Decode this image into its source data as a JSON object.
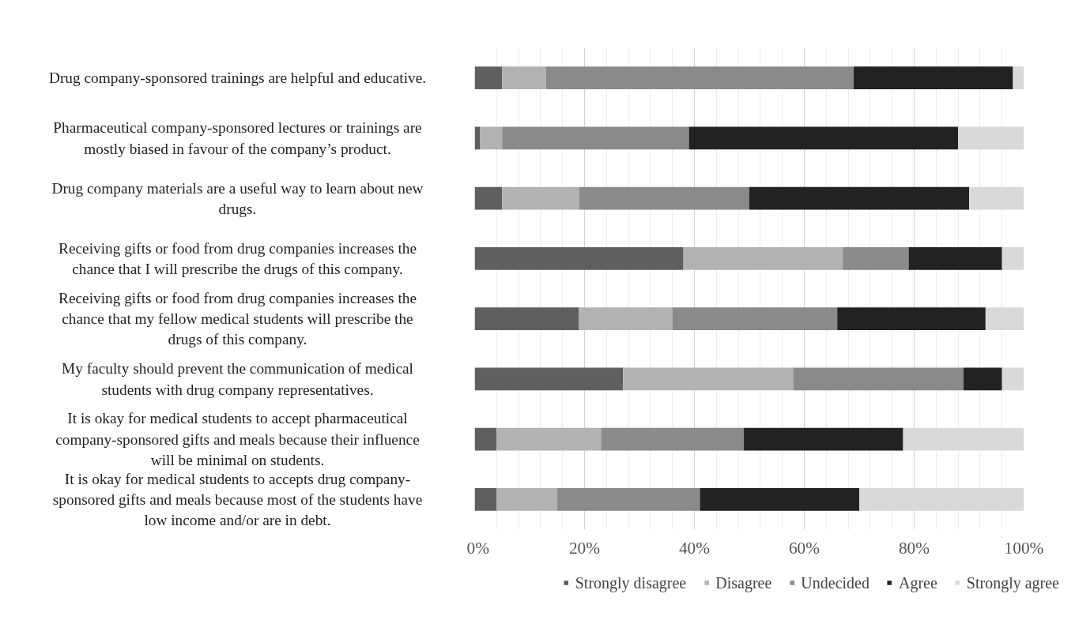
{
  "chart_data": {
    "type": "bar",
    "orientation": "horizontal",
    "stacked": true,
    "grid": "x",
    "legend": "bottom",
    "categories": [
      "Drug company-sponsored trainings are helpful and educative.",
      "Pharmaceutical company-sponsored lectures or trainings are mostly biased in favour of the company’s product.",
      "Drug company materials are a useful way to learn about new drugs.",
      "Receiving gifts or food from drug companies increases the chance that I will prescribe the drugs of this company.",
      "Receiving gifts or food from drug companies increases the chance that my fellow medical students will prescribe the drugs of this company.",
      "My faculty should prevent the communication of medical students with drug company representatives.",
      "It is okay for medical students to accept pharmaceutical company-sponsored gifts and meals because their influence will be minimal on students.",
      "It is okay for medical students to accepts drug company-sponsored gifts and meals because most of the students have low income and/or are in debt."
    ],
    "series": [
      {
        "name": "Strongly disagree",
        "color": "#5f5f5f",
        "values": [
          5,
          1,
          5,
          38,
          19,
          27,
          4,
          4
        ]
      },
      {
        "name": "Disagree",
        "color": "#b2b2b2",
        "values": [
          8,
          4,
          14,
          29,
          17,
          31,
          19,
          11
        ]
      },
      {
        "name": "Undecided",
        "color": "#8a8a8a",
        "values": [
          56,
          34,
          31,
          12,
          30,
          31,
          26,
          26
        ]
      },
      {
        "name": "Agree",
        "color": "#222222",
        "values": [
          29,
          49,
          40,
          17,
          27,
          7,
          29,
          29
        ]
      },
      {
        "name": "Strongly agree",
        "color": "#d9d9d9",
        "values": [
          2,
          12,
          10,
          4,
          7,
          4,
          22,
          30
        ]
      }
    ],
    "xlim": [
      0,
      100
    ],
    "xticks": [
      {
        "value": 0,
        "label": "0%"
      },
      {
        "value": 20,
        "label": "20%"
      },
      {
        "value": 40,
        "label": "40%"
      },
      {
        "value": 60,
        "label": "60%"
      },
      {
        "value": 80,
        "label": "80%"
      },
      {
        "value": 100,
        "label": "100%"
      }
    ]
  }
}
